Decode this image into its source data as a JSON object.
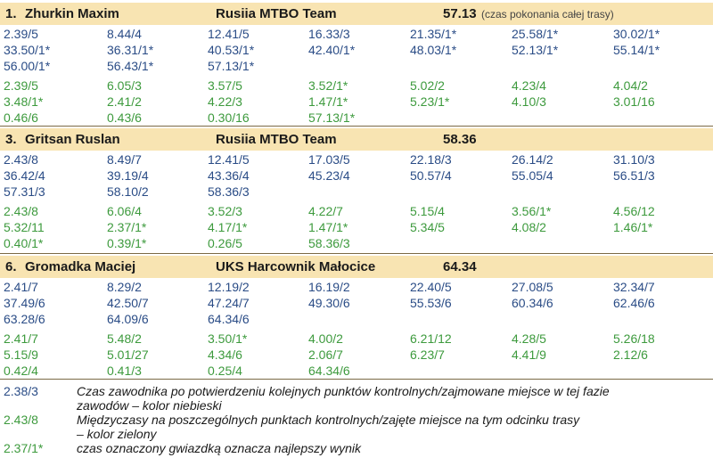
{
  "blocks": [
    {
      "rank": "1.",
      "name": "Zhurkin Maxim",
      "team": "Rusiia MTBO Team",
      "time": "57.13",
      "note": "(czas pokonania całej trasy)",
      "blue_rows": [
        [
          "2.39/5",
          "8.44/4",
          "12.41/5",
          "16.33/3",
          "21.35/1*",
          "25.58/1*",
          "30.02/1*"
        ],
        [
          "33.50/1*",
          "36.31/1*",
          "40.53/1*",
          "42.40/1*",
          "48.03/1*",
          "52.13/1*",
          "55.14/1*"
        ],
        [
          "56.00/1*",
          "56.43/1*",
          "57.13/1*",
          "",
          "",
          "",
          ""
        ]
      ],
      "green_rows": [
        [
          "2.39/5",
          "6.05/3",
          "3.57/5",
          "3.52/1*",
          "5.02/2",
          "4.23/4",
          "4.04/2"
        ],
        [
          "3.48/1*",
          "2.41/2",
          "4.22/3",
          "1.47/1*",
          "5.23/1*",
          "4.10/3",
          "3.01/16"
        ],
        [
          "0.46/6",
          "0.43/6",
          "0.30/16",
          "57.13/1*",
          "",
          "",
          ""
        ]
      ]
    },
    {
      "rank": "3.",
      "name": "Gritsan Ruslan",
      "team": "Rusiia MTBO Team",
      "time": "58.36",
      "note": "",
      "blue_rows": [
        [
          "2.43/8",
          "8.49/7",
          "12.41/5",
          "17.03/5",
          "22.18/3",
          "26.14/2",
          "31.10/3"
        ],
        [
          "36.42/4",
          "39.19/4",
          "43.36/4",
          "45.23/4",
          "50.57/4",
          "55.05/4",
          "56.51/3"
        ],
        [
          "57.31/3",
          "58.10/2",
          "58.36/3",
          "",
          "",
          "",
          ""
        ]
      ],
      "green_rows": [
        [
          "2.43/8",
          "6.06/4",
          "3.52/3",
          "4.22/7",
          "5.15/4",
          "3.56/1*",
          "4.56/12"
        ],
        [
          "5.32/11",
          "2.37/1*",
          "4.17/1*",
          "1.47/1*",
          "5.34/5",
          "4.08/2",
          "1.46/1*"
        ],
        [
          "0.40/1*",
          "0.39/1*",
          "0.26/5",
          "58.36/3",
          "",
          "",
          ""
        ]
      ]
    },
    {
      "rank": "6.",
      "name": "Gromadka Maciej",
      "team": "UKS Harcownik Małocice",
      "time": "64.34",
      "note": "",
      "blue_rows": [
        [
          "2.41/7",
          "8.29/2",
          "12.19/2",
          "16.19/2",
          "22.40/5",
          "27.08/5",
          "32.34/7"
        ],
        [
          "37.49/6",
          "42.50/7",
          "47.24/7",
          "49.30/6",
          "55.53/6",
          "60.34/6",
          "62.46/6"
        ],
        [
          "63.28/6",
          "64.09/6",
          "64.34/6",
          "",
          "",
          "",
          ""
        ]
      ],
      "green_rows": [
        [
          "2.41/7",
          "5.48/2",
          "3.50/1*",
          "4.00/2",
          "6.21/12",
          "4.28/5",
          "5.26/18"
        ],
        [
          "5.15/9",
          "5.01/27",
          "4.34/6",
          "2.06/7",
          "6.23/7",
          "4.41/9",
          "2.12/6"
        ],
        [
          "0.42/4",
          "0.41/3",
          "0.25/4",
          "64.34/6",
          "",
          "",
          ""
        ]
      ]
    }
  ],
  "legend": [
    {
      "code": "2.38/3",
      "color": "blue",
      "lines": [
        "Czas zawodnika po potwierdzeniu kolejnych punktów kontrolnych/zajmowane miejsce w tej fazie",
        "zawodów – kolor niebieski"
      ]
    },
    {
      "code": "2.43/8",
      "color": "green",
      "lines": [
        "Międzyczasy na poszczególnych punktach kontrolnych/zajęte miejsce na tym odcinku trasy",
        "– kolor zielony"
      ]
    },
    {
      "code": "2.37/1*",
      "color": "green",
      "lines": [
        "czas oznaczony gwiazdką oznacza najlepszy wynik"
      ]
    }
  ],
  "colors": {
    "header_bg": "#f8e4b2",
    "blue": "#2a4c86",
    "green": "#3d9a3d"
  }
}
